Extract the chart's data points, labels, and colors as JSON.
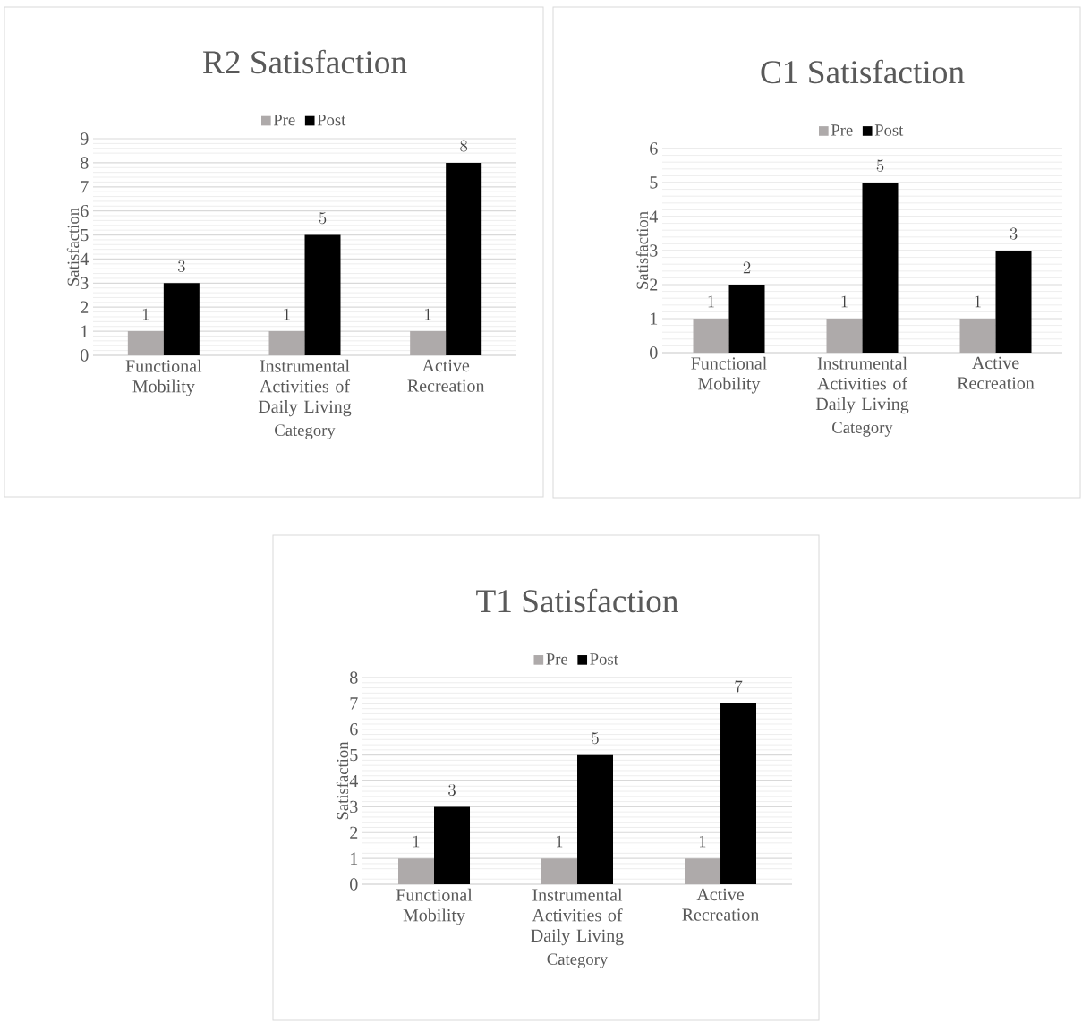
{
  "chart_data": [
    {
      "type": "bar",
      "title": "R2 Satisfaction",
      "xlabel": "Category",
      "ylabel": "Satisfaction",
      "categories": [
        "Functional Mobility",
        "Instrumental Activities of Daily Living",
        "Active Recreation"
      ],
      "series": [
        {
          "name": "Pre",
          "color": "#aeaaaa",
          "values": [
            1,
            1,
            1
          ]
        },
        {
          "name": "Post",
          "color": "#000000",
          "values": [
            3,
            5,
            8
          ]
        }
      ],
      "ylim": [
        0,
        9
      ],
      "yticks": [
        0,
        1,
        2,
        3,
        4,
        5,
        6,
        7,
        8,
        9
      ],
      "grid": "y",
      "legend": "top",
      "data_labels": true
    },
    {
      "type": "bar",
      "title": "C1 Satisfaction",
      "xlabel": "Category",
      "ylabel": "Satisfaction",
      "categories": [
        "Functional Mobility",
        "Instrumental Activities of Daily Living",
        "Active Recreation"
      ],
      "series": [
        {
          "name": "Pre",
          "color": "#aeaaaa",
          "values": [
            1,
            1,
            1
          ]
        },
        {
          "name": "Post",
          "color": "#000000",
          "values": [
            2,
            5,
            3
          ]
        }
      ],
      "ylim": [
        0,
        6
      ],
      "yticks": [
        0,
        1,
        2,
        3,
        4,
        5,
        6
      ],
      "grid": "y",
      "legend": "top",
      "data_labels": true
    },
    {
      "type": "bar",
      "title": "T1 Satisfaction",
      "xlabel": "Category",
      "ylabel": "Satisfaction",
      "categories": [
        "Functional Mobility",
        "Instrumental Activities of Daily Living",
        "Active Recreation"
      ],
      "series": [
        {
          "name": "Pre",
          "color": "#aeaaaa",
          "values": [
            1,
            1,
            1
          ]
        },
        {
          "name": "Post",
          "color": "#000000",
          "values": [
            3,
            5,
            7
          ]
        }
      ],
      "ylim": [
        0,
        8
      ],
      "yticks": [
        0,
        1,
        2,
        3,
        4,
        5,
        6,
        7,
        8
      ],
      "grid": "y",
      "legend": "top",
      "data_labels": true
    }
  ]
}
